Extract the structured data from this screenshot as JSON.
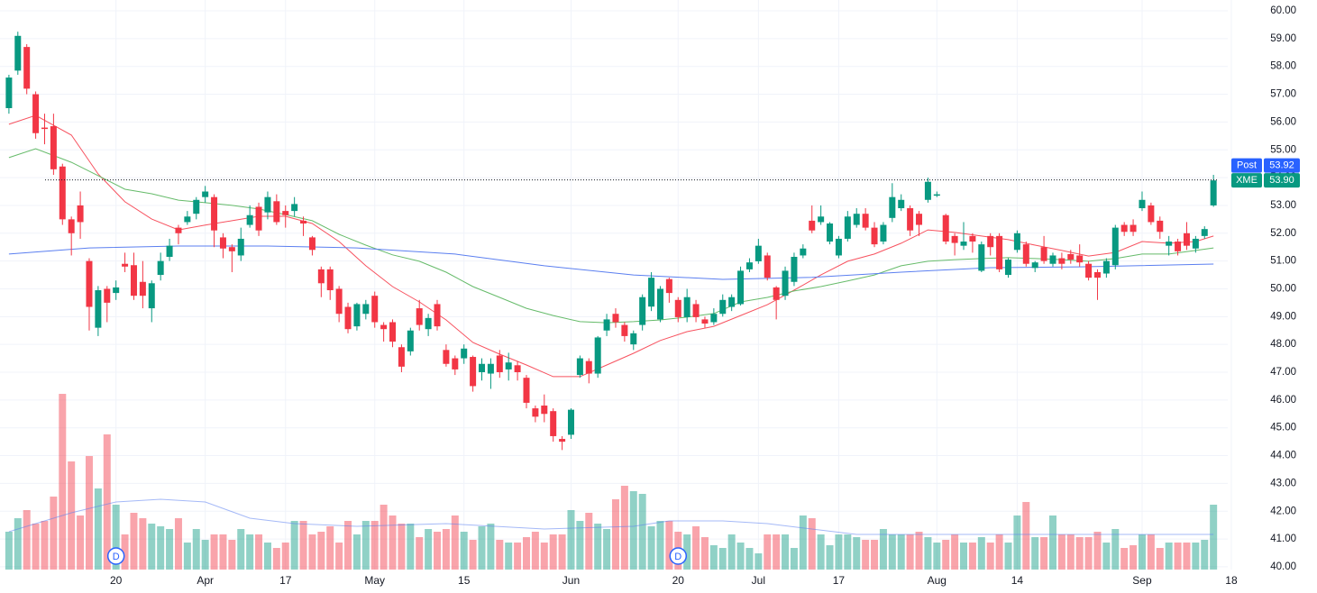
{
  "chart_data": {
    "type": "candlestick",
    "up_color": "#089981",
    "down_color": "#f23645",
    "grid": true,
    "xlim": [
      -1,
      136.6
    ],
    "xticks": [
      {
        "value": 12,
        "label": "20"
      },
      {
        "value": 22,
        "label": "Apr"
      },
      {
        "value": 31,
        "label": "17"
      },
      {
        "value": 41,
        "label": "May"
      },
      {
        "value": 51,
        "label": "15"
      },
      {
        "value": 63,
        "label": "Jun"
      },
      {
        "value": 75,
        "label": "20"
      },
      {
        "value": 84,
        "label": "Jul"
      },
      {
        "value": 93,
        "label": "17"
      },
      {
        "value": 104,
        "label": "Aug"
      },
      {
        "value": 113,
        "label": "14"
      },
      {
        "value": 127,
        "label": "Sep"
      },
      {
        "value": 137,
        "label": "18"
      }
    ],
    "ylim": [
      39.9,
      60.39
    ],
    "yticks": [
      {
        "value": 40,
        "label": "40.00"
      },
      {
        "value": 41,
        "label": "41.00"
      },
      {
        "value": 42,
        "label": "42.00"
      },
      {
        "value": 43,
        "label": "43.00"
      },
      {
        "value": 44,
        "label": "44.00"
      },
      {
        "value": 45,
        "label": "45.00"
      },
      {
        "value": 46,
        "label": "46.00"
      },
      {
        "value": 47,
        "label": "47.00"
      },
      {
        "value": 48,
        "label": "48.00"
      },
      {
        "value": 49,
        "label": "49.00"
      },
      {
        "value": 50,
        "label": "50.00"
      },
      {
        "value": 51,
        "label": "51.00"
      },
      {
        "value": 52,
        "label": "52.00"
      },
      {
        "value": 53,
        "label": "53.00"
      },
      {
        "value": 54,
        "label": "54.00"
      },
      {
        "value": 55,
        "label": "55.00"
      },
      {
        "value": 56,
        "label": "56.00"
      },
      {
        "value": 57,
        "label": "57.00"
      },
      {
        "value": 58,
        "label": "58.00"
      },
      {
        "value": 59,
        "label": "59.00"
      },
      {
        "value": 60,
        "label": "60.00"
      }
    ],
    "open": [
      56.5,
      57.85,
      58.7,
      57.0,
      55.8,
      55.85,
      54.4,
      52.5,
      53.0,
      51.0,
      48.6,
      50.0,
      49.85,
      50.9,
      50.85,
      50.25,
      49.3,
      50.5,
      51.15,
      52.2,
      52.4,
      52.7,
      53.3,
      53.3,
      51.85,
      51.5,
      51.2,
      52.3,
      52.95,
      52.75,
      53.15,
      52.8,
      52.8,
      52.45,
      51.85,
      50.7,
      50.7,
      50.0,
      49.35,
      48.65,
      49.1,
      49.75,
      48.7,
      48.8,
      47.9,
      47.75,
      49.3,
      48.55,
      49.45,
      47.8,
      47.5,
      47.5,
      47.55,
      47.0,
      46.95,
      47.6,
      47.1,
      47.25,
      46.8,
      45.7,
      45.8,
      45.6,
      44.6,
      44.75,
      46.9,
      47.4,
      46.95,
      48.5,
      49.1,
      48.7,
      48.0,
      48.7,
      49.36,
      48.9,
      50.35,
      49.6,
      48.98,
      49.45,
      48.9,
      48.8,
      49.1,
      49.35,
      49.45,
      50.7,
      50.99,
      51.2,
      50.05,
      49.75,
      50.25,
      51.2,
      52.45,
      52.4,
      51.7,
      51.2,
      51.8,
      52.3,
      52.7,
      52.2,
      51.7,
      52.55,
      52.9,
      52.9,
      52.7,
      53.2,
      53.35,
      52.65,
      51.9,
      51.55,
      51.9,
      50.65,
      51.9,
      51.9,
      50.5,
      51.4,
      51.6,
      50.75,
      51.5,
      50.9,
      51.1,
      51.25,
      51.2,
      50.9,
      50.6,
      50.55,
      50.85,
      52.3,
      52.3,
      52.9,
      53.0,
      52.45,
      51.55,
      51.7,
      52.0,
      51.45,
      51.9,
      53.0
    ],
    "high": [
      57.7,
      59.25,
      58.8,
      57.1,
      56.3,
      56.3,
      54.5,
      52.6,
      53.5,
      51.1,
      50.1,
      50.1,
      50.3,
      51.3,
      51.3,
      51.0,
      50.3,
      51.3,
      51.8,
      52.3,
      52.8,
      53.3,
      53.7,
      53.4,
      52.0,
      51.6,
      52.2,
      53.0,
      53.1,
      53.5,
      53.4,
      53.0,
      53.3,
      52.6,
      51.9,
      50.8,
      50.8,
      50.1,
      49.5,
      49.5,
      49.6,
      49.9,
      48.8,
      48.9,
      48.0,
      48.6,
      49.6,
      49.1,
      49.6,
      48.0,
      47.6,
      48.0,
      47.6,
      47.5,
      47.5,
      47.8,
      47.7,
      47.4,
      46.9,
      45.8,
      46.2,
      45.7,
      44.7,
      45.7,
      47.6,
      47.5,
      48.3,
      49.1,
      49.3,
      48.8,
      48.5,
      49.8,
      50.6,
      50.1,
      50.4,
      49.7,
      50.0,
      49.6,
      49.0,
      49.3,
      49.8,
      49.8,
      50.8,
      51.1,
      51.8,
      51.3,
      50.1,
      50.8,
      51.3,
      51.6,
      53.0,
      53.0,
      52.4,
      51.9,
      52.8,
      52.9,
      52.9,
      52.4,
      52.4,
      53.8,
      53.4,
      53.0,
      52.8,
      54.0,
      53.5,
      52.7,
      52.0,
      52.4,
      52.0,
      51.7,
      52.0,
      52.0,
      51.1,
      52.1,
      51.7,
      51.0,
      51.9,
      51.3,
      51.3,
      51.4,
      51.6,
      51.0,
      50.7,
      51.1,
      52.3,
      52.4,
      52.5,
      53.5,
      53.1,
      52.6,
      51.9,
      51.8,
      52.4,
      51.9,
      52.25,
      54.1
    ],
    "low": [
      56.3,
      57.7,
      57.0,
      55.4,
      55.2,
      54.1,
      52.3,
      51.2,
      51.8,
      48.5,
      48.3,
      48.8,
      49.6,
      50.6,
      49.6,
      49.3,
      48.8,
      50.3,
      51.0,
      51.6,
      52.3,
      52.5,
      53.1,
      51.5,
      51.1,
      50.6,
      51.0,
      52.2,
      51.9,
      52.5,
      52.3,
      52.2,
      52.6,
      51.9,
      51.2,
      49.7,
      49.6,
      48.8,
      48.4,
      48.5,
      48.9,
      48.6,
      48.1,
      47.9,
      47.0,
      47.6,
      48.5,
      48.3,
      48.5,
      47.2,
      46.9,
      47.3,
      46.3,
      46.7,
      46.4,
      46.8,
      46.7,
      46.7,
      45.7,
      45.2,
      45.2,
      44.5,
      44.2,
      44.6,
      46.8,
      46.6,
      46.8,
      48.3,
      48.6,
      48.1,
      47.8,
      48.5,
      49.2,
      48.8,
      49.5,
      48.8,
      48.8,
      48.8,
      48.6,
      48.7,
      49.0,
      49.2,
      49.4,
      50.6,
      50.9,
      50.3,
      48.9,
      49.6,
      50.1,
      51.1,
      52.0,
      52.3,
      51.6,
      51.1,
      51.7,
      52.2,
      52.1,
      51.5,
      51.6,
      52.4,
      52.8,
      51.9,
      51.9,
      53.1,
      53.3,
      51.6,
      51.2,
      51.4,
      51.3,
      50.6,
      51.2,
      50.6,
      50.4,
      51.3,
      50.8,
      50.6,
      50.9,
      50.8,
      50.7,
      50.9,
      50.8,
      50.3,
      49.6,
      50.4,
      50.7,
      51.9,
      51.9,
      52.8,
      52.3,
      51.8,
      51.2,
      51.2,
      51.4,
      51.3,
      51.8,
      52.95
    ],
    "close": [
      57.6,
      59.1,
      57.2,
      55.6,
      55.75,
      54.3,
      52.5,
      52.0,
      52.4,
      49.35,
      49.95,
      49.5,
      50.05,
      50.8,
      49.75,
      49.75,
      50.2,
      51.0,
      51.55,
      52.0,
      52.6,
      53.2,
      53.5,
      52.1,
      51.45,
      51.35,
      51.8,
      52.65,
      52.1,
      53.3,
      52.4,
      52.65,
      53.05,
      52.35,
      51.4,
      50.2,
      49.95,
      49.1,
      48.55,
      49.45,
      49.45,
      48.8,
      48.55,
      48.1,
      47.2,
      48.5,
      48.7,
      48.95,
      48.65,
      47.3,
      47.1,
      47.85,
      46.5,
      47.3,
      47.3,
      47.0,
      47.35,
      47.0,
      45.9,
      45.4,
      45.5,
      44.7,
      44.5,
      45.65,
      47.5,
      46.95,
      48.25,
      48.9,
      48.8,
      48.3,
      48.4,
      49.7,
      50.4,
      50.0,
      49.85,
      48.98,
      49.7,
      48.98,
      48.75,
      49.1,
      49.6,
      49.7,
      50.65,
      50.95,
      51.55,
      50.4,
      49.6,
      50.65,
      51.15,
      51.45,
      52.1,
      52.6,
      52.35,
      51.8,
      52.6,
      52.7,
      52.2,
      51.6,
      52.3,
      53.3,
      53.2,
      52.1,
      52.3,
      53.85,
      53.4,
      51.7,
      51.65,
      51.7,
      51.7,
      51.6,
      51.5,
      50.7,
      51.05,
      52.0,
      50.9,
      50.95,
      51.0,
      51.2,
      50.9,
      51.05,
      50.95,
      50.4,
      50.4,
      51.0,
      52.2,
      52.05,
      52.05,
      53.2,
      52.4,
      52.05,
      51.7,
      51.35,
      51.55,
      51.8,
      52.15,
      53.9
    ],
    "volume": [
      1.4,
      1.9,
      2.2,
      1.7,
      1.8,
      2.7,
      6.5,
      4.0,
      2.0,
      4.2,
      3.0,
      5.0,
      2.4,
      1.3,
      2.1,
      1.9,
      1.7,
      1.6,
      1.5,
      1.9,
      1.0,
      1.5,
      1.1,
      1.3,
      1.3,
      1.1,
      1.5,
      1.3,
      1.3,
      1.0,
      0.8,
      1.0,
      1.8,
      1.8,
      1.3,
      1.4,
      1.6,
      1.0,
      1.8,
      1.3,
      1.8,
      1.8,
      2.4,
      2.0,
      1.7,
      1.7,
      1.2,
      1.5,
      1.4,
      1.5,
      2.0,
      1.4,
      1.1,
      1.6,
      1.7,
      1.1,
      1.0,
      1.0,
      1.2,
      1.4,
      1.0,
      1.3,
      1.3,
      2.2,
      1.8,
      2.1,
      1.7,
      1.5,
      2.6,
      3.1,
      2.9,
      2.8,
      1.6,
      1.8,
      1.8,
      1.4,
      1.3,
      1.6,
      1.2,
      0.9,
      0.8,
      1.3,
      1.0,
      0.8,
      0.6,
      1.3,
      1.3,
      1.3,
      0.8,
      2.0,
      1.9,
      1.3,
      0.9,
      1.3,
      1.3,
      1.2,
      1.1,
      1.1,
      1.5,
      1.3,
      1.3,
      1.3,
      1.4,
      1.2,
      1.0,
      1.1,
      1.3,
      1.0,
      1.0,
      1.2,
      1.0,
      1.3,
      1.0,
      2.0,
      2.5,
      1.2,
      1.2,
      2.0,
      1.3,
      1.3,
      1.2,
      1.2,
      1.4,
      1.0,
      1.5,
      0.8,
      0.9,
      1.3,
      1.3,
      0.8,
      1.0,
      1.0,
      1.0,
      1.0,
      1.1,
      2.4
    ],
    "volume_ylim": [
      0,
      21.07
    ],
    "moving_averages": [
      {
        "color": "#f7525f",
        "x": [
          0,
          3,
          7,
          10,
          13,
          16,
          19,
          22,
          25,
          28,
          31,
          34,
          37,
          40,
          43,
          46,
          49,
          52,
          55,
          58,
          61,
          64,
          67,
          70,
          73,
          76,
          79,
          82,
          85,
          88,
          91,
          94,
          97,
          100,
          103,
          106,
          109,
          112,
          115,
          118,
          121,
          124,
          127,
          130,
          133,
          135
        ],
        "values": [
          55.92,
          56.24,
          55.53,
          54.13,
          53.13,
          52.51,
          52.12,
          52.29,
          52.45,
          52.61,
          52.61,
          52.35,
          51.7,
          50.83,
          50.08,
          49.53,
          48.88,
          48.07,
          47.65,
          47.26,
          46.84,
          46.84,
          47.26,
          47.68,
          48.14,
          48.46,
          48.65,
          49.04,
          49.43,
          49.95,
          50.5,
          50.99,
          51.25,
          51.64,
          52.12,
          52.03,
          51.9,
          51.77,
          51.57,
          51.38,
          51.18,
          51.31,
          51.7,
          51.64,
          51.7,
          51.9
        ]
      },
      {
        "color": "#66bb6a",
        "x": [
          0,
          3,
          7,
          10,
          13,
          16,
          19,
          22,
          25,
          28,
          31,
          34,
          37,
          40,
          43,
          46,
          49,
          52,
          55,
          58,
          61,
          64,
          67,
          70,
          73,
          76,
          79,
          82,
          85,
          88,
          91,
          94,
          97,
          100,
          103,
          106,
          109,
          112,
          115,
          118,
          121,
          124,
          127,
          130,
          133,
          135
        ],
        "values": [
          54.72,
          55.04,
          54.55,
          54.07,
          53.58,
          53.42,
          53.19,
          53.1,
          53.0,
          52.87,
          52.67,
          52.45,
          51.96,
          51.57,
          51.22,
          50.99,
          50.6,
          50.08,
          49.69,
          49.3,
          49.04,
          48.82,
          48.78,
          48.82,
          48.88,
          48.98,
          49.11,
          49.53,
          49.69,
          49.92,
          50.08,
          50.28,
          50.5,
          50.83,
          50.99,
          51.05,
          51.09,
          51.12,
          51.09,
          51.05,
          50.99,
          51.09,
          51.25,
          51.25,
          51.38,
          51.47
        ]
      },
      {
        "color": "#5b7ff0",
        "x": [
          0,
          9,
          19,
          29,
          39,
          50,
          60,
          70,
          80,
          90,
          100,
          110,
          120,
          135
        ],
        "values": [
          51.25,
          51.47,
          51.54,
          51.54,
          51.47,
          51.25,
          50.83,
          50.5,
          50.34,
          50.41,
          50.6,
          50.76,
          50.79,
          50.89
        ]
      }
    ],
    "volume_ma": {
      "color": "#5b7ff0",
      "x": [
        0,
        7,
        12,
        17,
        22,
        27,
        32,
        39,
        49,
        60,
        70,
        74,
        80,
        85,
        90,
        95,
        105,
        115,
        125,
        135
      ],
      "values": [
        1.4,
        2.1,
        2.5,
        2.6,
        2.5,
        1.9,
        1.7,
        1.6,
        1.7,
        1.5,
        1.6,
        1.8,
        1.8,
        1.7,
        1.5,
        1.3,
        1.3,
        1.3,
        1.3,
        1.3
      ]
    },
    "price_lines": [
      {
        "label": "Post",
        "value": 53.92,
        "value_label": "53.92",
        "color": "#2962ff"
      },
      {
        "label": "XME",
        "value": 53.9,
        "value_label": "53.90",
        "color": "#089981"
      }
    ],
    "events": [
      {
        "x": 12,
        "label": "D"
      },
      {
        "x": 75,
        "label": "D"
      }
    ]
  }
}
